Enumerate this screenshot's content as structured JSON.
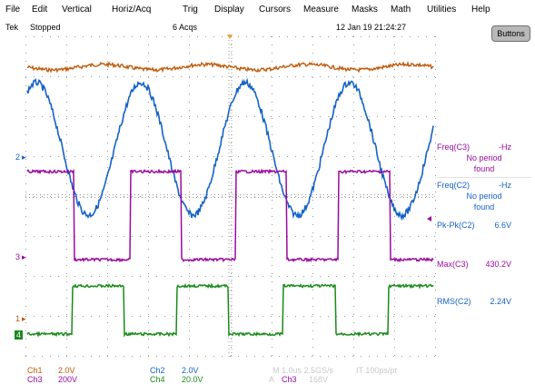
{
  "menu": {
    "items": [
      {
        "label": "File"
      },
      {
        "label": "Edit"
      },
      {
        "label": "Vertical"
      },
      {
        "label": "Horiz/Acq"
      },
      {
        "label": "Trig"
      },
      {
        "label": "Display"
      },
      {
        "label": "Cursors"
      },
      {
        "label": "Measure"
      },
      {
        "label": "Masks"
      },
      {
        "label": "Math"
      },
      {
        "label": "Utilities"
      },
      {
        "label": "Help"
      }
    ]
  },
  "status": {
    "brand": "Tek",
    "run_state": "Stopped",
    "acquisitions": "6 Acqs",
    "datetime": "12 Jan 19 21:24:27"
  },
  "buttons_label": "Buttons",
  "channel_markers": {
    "ch2": "2",
    "ch3": "3",
    "ch1": "1",
    "ch4": "4"
  },
  "measurements": [
    {
      "label": "Freq(C3)",
      "value": "-Hz",
      "note1": "No period",
      "note2": "found",
      "color": "#9a0aa0"
    },
    {
      "label": "Freq(C2)",
      "value": "-Hz",
      "note1": "No period",
      "note2": "found",
      "color": "#1462c6"
    },
    {
      "label": "Pk-Pk(C2)",
      "value": "6.6V",
      "color": "#1462c6"
    },
    {
      "label": "Max(C3)",
      "value": "430.2V",
      "color": "#9a0aa0"
    },
    {
      "label": "RMS(C2)",
      "value": "2.24V",
      "color": "#1462c6"
    }
  ],
  "readouts": {
    "ch1_label": "Ch1",
    "ch1_scale": "2.0V",
    "ch2_label": "Ch2",
    "ch2_scale": "2.0V",
    "ch3_label": "Ch3",
    "ch3_scale": "200V",
    "ch4_label": "Ch4",
    "ch4_scale": "20.0V",
    "horiz": "M 1.0us 2.5GS/s",
    "record": "IT 100ps/pt",
    "trigger": "Ch3",
    "trigger_level": "168V"
  },
  "colors": {
    "ch1": "#c05a0a",
    "ch2": "#1462c6",
    "ch3": "#9a0aa0",
    "ch4": "#1a8a1a",
    "grid": "#9a9a9a"
  }
}
